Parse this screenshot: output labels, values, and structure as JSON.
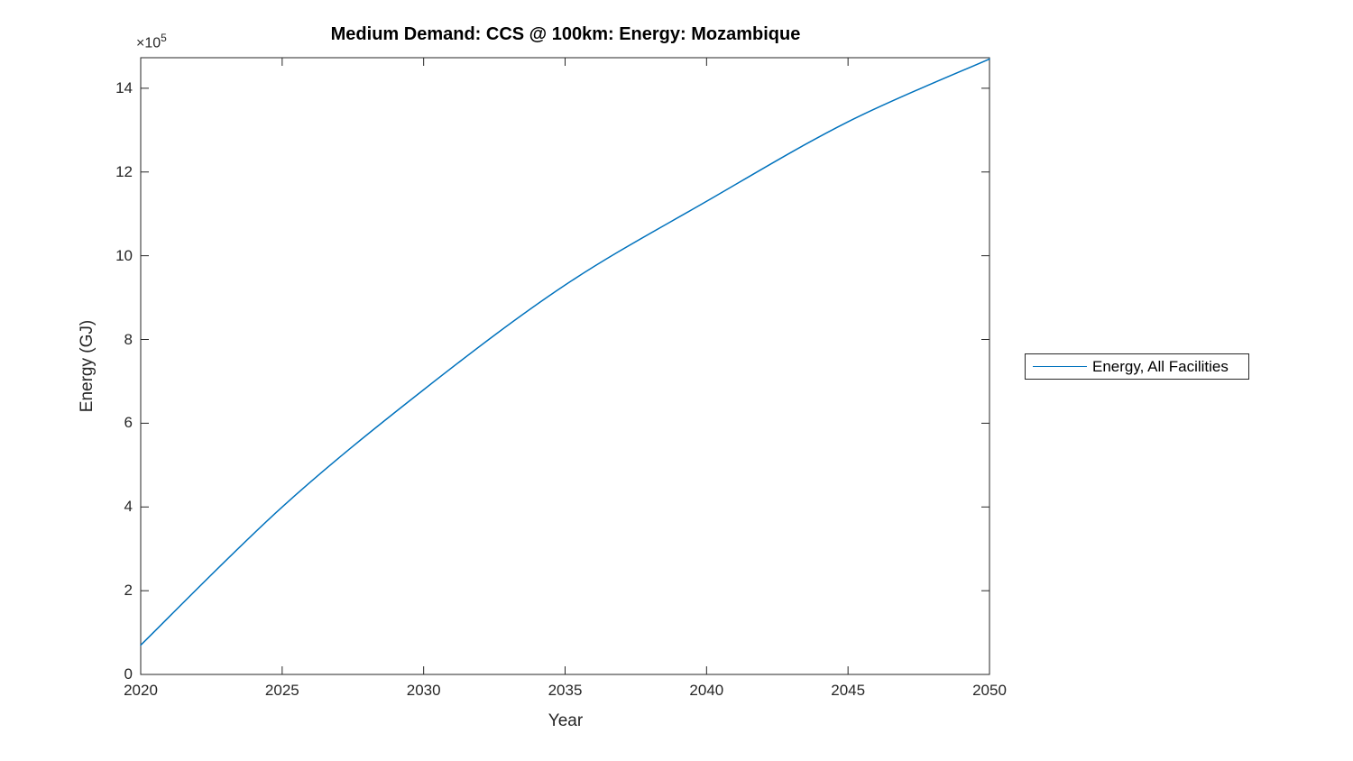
{
  "chart_data": {
    "type": "line",
    "title": "Medium Demand: CCS @ 100km: Energy: Mozambique",
    "xlabel": "Year",
    "ylabel": "Energy (GJ)",
    "y_axis_multiplier": {
      "base": "×10",
      "exponent": "5"
    },
    "x": [
      2020,
      2025,
      2030,
      2035,
      2040,
      2045,
      2050
    ],
    "series": [
      {
        "name": "Energy, All Facilities",
        "color": "#0072BD",
        "values_x1e5": [
          0.7,
          4.0,
          6.8,
          9.3,
          11.3,
          13.2,
          14.7
        ]
      }
    ],
    "xlim": [
      2020,
      2050
    ],
    "ylim_x1e5": [
      0,
      14.73
    ],
    "x_tick_labels": [
      "2020",
      "2025",
      "2030",
      "2035",
      "2040",
      "2045",
      "2050"
    ],
    "y_tick_labels": [
      "0",
      "2",
      "4",
      "6",
      "8",
      "10",
      "12",
      "14"
    ],
    "grid": false,
    "curve_shape": "smooth concave (growth with decreasing slope)",
    "legend": {
      "entries": [
        "Energy, All Facilities"
      ],
      "position": "outside-right",
      "border": true
    }
  },
  "style": {
    "axis_color": "#262626",
    "background": "#ffffff",
    "line_color": "#0072BD"
  }
}
